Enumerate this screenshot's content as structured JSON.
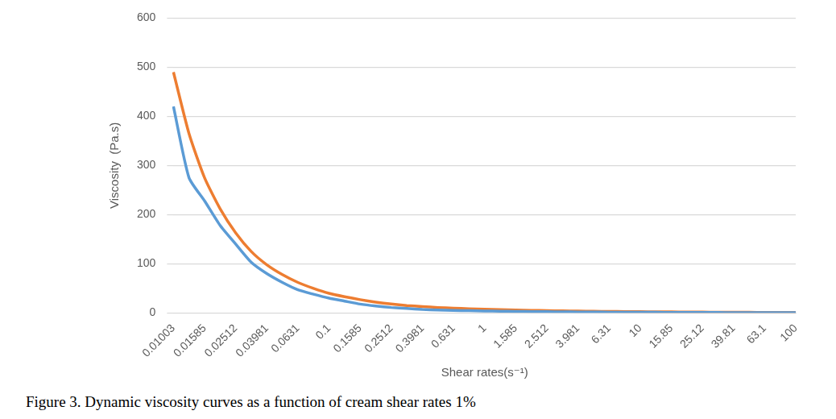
{
  "chart_data": {
    "type": "line",
    "title": "Figure 3. Dynamic viscosity curves as a function of cream shear rates 1%",
    "x_label": "Shear rates(s⁻¹)",
    "y_label": "Viscosity  (Pa.s)",
    "categories": [
      "0.01003",
      null,
      "0.01585",
      null,
      "0.02512",
      null,
      "0.03981",
      null,
      "0.0631",
      null,
      "0.1",
      null,
      "0.1585",
      null,
      "0.2512",
      null,
      "0.3981",
      null,
      "0.631",
      null,
      "1",
      null,
      "1.585",
      null,
      "2.512",
      null,
      "3.981",
      null,
      "6.31",
      null,
      "10",
      null,
      "15.85",
      null,
      "25.12",
      null,
      "39.81",
      null,
      "63.1",
      null,
      "100"
    ],
    "series": [
      {
        "color": "#5b9bd5",
        "values": [
          420,
          275,
          228,
          178,
          140,
          103,
          80,
          62,
          47,
          38,
          30,
          24,
          18,
          14,
          11,
          9,
          7,
          6,
          5,
          4.5,
          4,
          3.5,
          3,
          2.7,
          2.4,
          2.1,
          1.9,
          1.7,
          1.5,
          1.4,
          1.3,
          1.2,
          1.1,
          1,
          0.9,
          0.8,
          0.7,
          0.6,
          0.5,
          0.5,
          0.4
        ]
      },
      {
        "color": "#ed7d31",
        "values": [
          490,
          365,
          275,
          212,
          163,
          125,
          98,
          78,
          62,
          50,
          40,
          33,
          27,
          22,
          18,
          15,
          13,
          11,
          9.5,
          8.5,
          7.5,
          6.5,
          5.8,
          5.2,
          4.6,
          4.1,
          3.7,
          3.3,
          3,
          2.7,
          2.4,
          2.2,
          2,
          1.8,
          1.6,
          1.5,
          1.3,
          1.2,
          1.1,
          1,
          0.9
        ]
      }
    ],
    "ylim": [
      0,
      600
    ],
    "yticks": [
      0,
      100,
      200,
      300,
      400,
      500,
      600
    ],
    "grid": true
  }
}
